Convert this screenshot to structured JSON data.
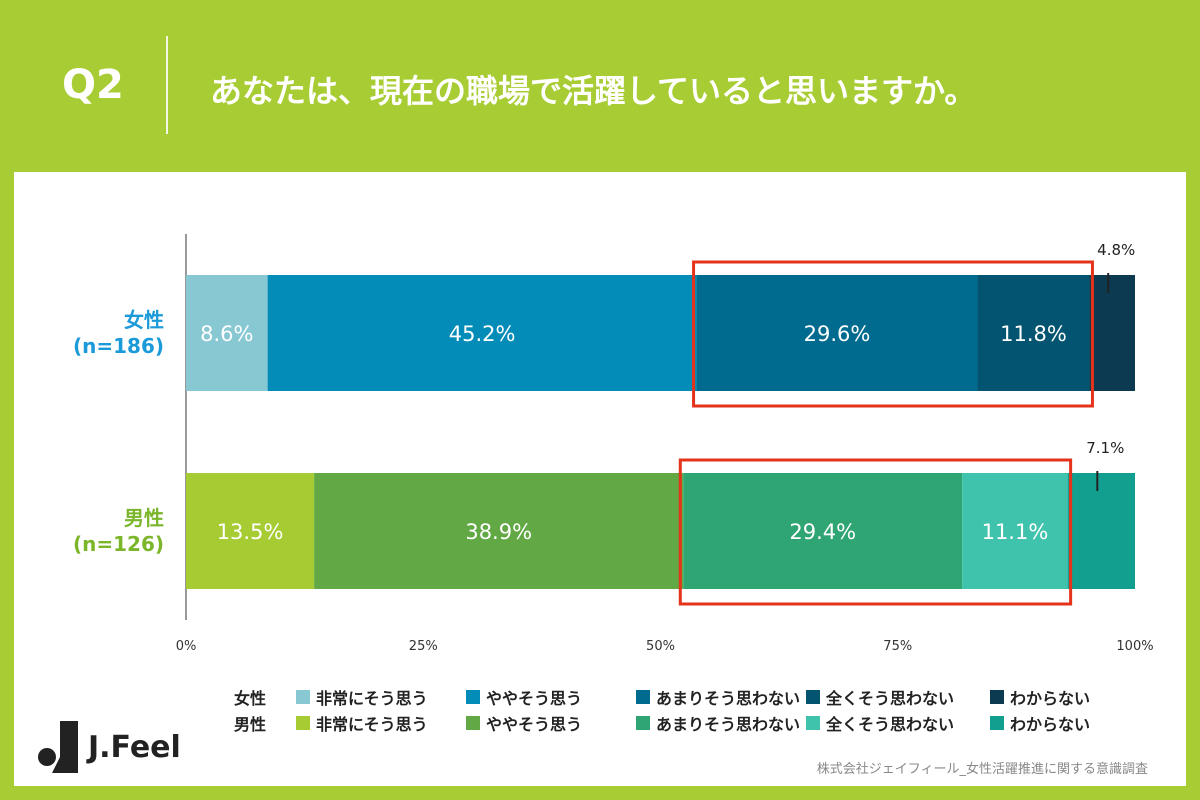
{
  "header": {
    "question": "Q2",
    "title": "あなたは、現在の職場で活躍していると思いますか。"
  },
  "chart_data": {
    "type": "bar",
    "orientation": "horizontal",
    "stacked": true,
    "x_ticks": [
      "0%",
      "25%",
      "50%",
      "75%",
      "100%"
    ],
    "xlim": [
      0,
      100
    ],
    "rows": [
      {
        "label": "女性",
        "n_label": "(n=186)",
        "label_color": "#1a9ad8",
        "segments": [
          {
            "name": "非常にそう思う",
            "value": 8.6,
            "label": "8.6%",
            "color": "#88c8d3"
          },
          {
            "name": "ややそう思う",
            "value": 45.2,
            "label": "45.2%",
            "color": "#028cb7"
          },
          {
            "name": "あまりそう思わない",
            "value": 29.6,
            "label": "29.6%",
            "color": "#006b8f"
          },
          {
            "name": "全くそう思わない",
            "value": 11.8,
            "label": "11.8%",
            "color": "#025470"
          },
          {
            "name": "わからない",
            "value": 4.8,
            "label": "4.8%",
            "color": "#0c3a51"
          }
        ]
      },
      {
        "label": "男性",
        "n_label": "(n=126)",
        "label_color": "#7bb62a",
        "segments": [
          {
            "name": "非常にそう思う",
            "value": 13.5,
            "label": "13.5%",
            "color": "#a7cb32"
          },
          {
            "name": "ややそう思う",
            "value": 38.9,
            "label": "38.9%",
            "color": "#62a845"
          },
          {
            "name": "あまりそう思わない",
            "value": 29.4,
            "label": "29.4%",
            "color": "#2fa574"
          },
          {
            "name": "全くそう思わない",
            "value": 11.1,
            "label": "11.1%",
            "color": "#40c3ad"
          },
          {
            "name": "わからない",
            "value": 7.1,
            "label": "7.1%",
            "color": "#129f90"
          }
        ]
      }
    ],
    "highlight_color": "#e5331b"
  },
  "legend": {
    "rows": [
      {
        "gender": "女性",
        "items": [
          {
            "label": "非常にそう思う",
            "color": "#88c8d3"
          },
          {
            "label": "ややそう思う",
            "color": "#028cb7"
          },
          {
            "label": "あまりそう思わない",
            "color": "#006b8f"
          },
          {
            "label": "全くそう思わない",
            "color": "#025470"
          },
          {
            "label": "わからない",
            "color": "#0c3a51"
          }
        ]
      },
      {
        "gender": "男性",
        "items": [
          {
            "label": "非常にそう思う",
            "color": "#a7cb32"
          },
          {
            "label": "ややそう思う",
            "color": "#62a845"
          },
          {
            "label": "あまりそう思わない",
            "color": "#2fa574"
          },
          {
            "label": "全くそう思わない",
            "color": "#40c3ad"
          },
          {
            "label": "わからない",
            "color": "#129f90"
          }
        ]
      }
    ]
  },
  "logo": {
    "text": "J.Feel"
  },
  "source": "株式会社ジェイフィール_女性活躍推進に関する意識調査"
}
